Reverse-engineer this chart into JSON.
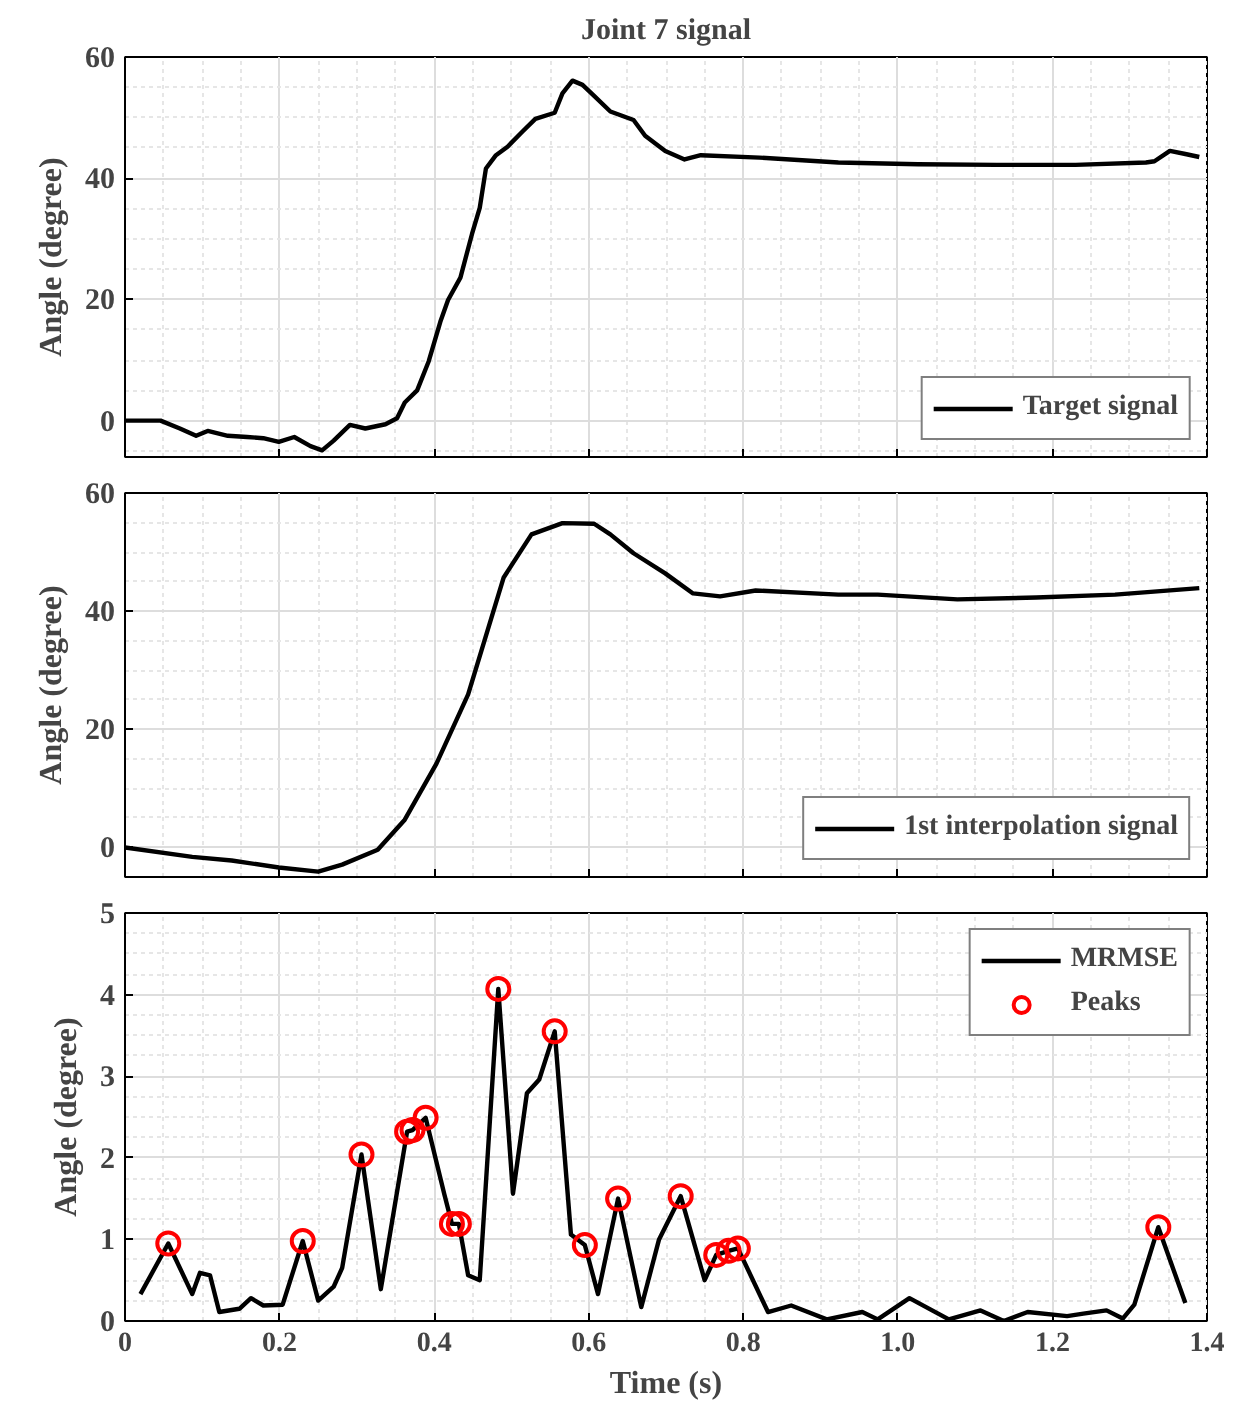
{
  "chart_data": [
    {
      "type": "line",
      "title": "Joint 7 signal",
      "ylabel": "Angle (degree)",
      "xlim": [
        0,
        1.4
      ],
      "xticks": [
        0,
        0.2,
        0.4,
        0.6,
        0.8,
        1.0,
        1.2,
        1.4
      ],
      "ylim": [
        -6,
        60
      ],
      "yticks": [
        0,
        20,
        40,
        60
      ],
      "tick_labels": "y",
      "grid": true,
      "legend": "bottom right",
      "line_style": "solid",
      "series": [
        {
          "name": "Target signal",
          "color": "#000000",
          "x": [
            0,
            0.046,
            0.071,
            0.092,
            0.107,
            0.133,
            0.158,
            0.179,
            0.199,
            0.219,
            0.24,
            0.255,
            0.27,
            0.291,
            0.311,
            0.337,
            0.352,
            0.362,
            0.378,
            0.393,
            0.408,
            0.418,
            0.434,
            0.449,
            0.459,
            0.467,
            0.48,
            0.495,
            0.515,
            0.531,
            0.556,
            0.566,
            0.579,
            0.592,
            0.607,
            0.628,
            0.658,
            0.673,
            0.699,
            0.724,
            0.745,
            0.821,
            0.923,
            1.026,
            1.128,
            1.23,
            1.321,
            1.332,
            1.352,
            1.372,
            1.39
          ],
          "values": [
            0,
            0,
            -1.3,
            -2.5,
            -1.7,
            -2.5,
            -2.7,
            -2.9,
            -3.5,
            -2.7,
            -4.2,
            -4.9,
            -3.3,
            -0.7,
            -1.3,
            -0.6,
            0.4,
            3,
            5,
            9.8,
            16.3,
            19.9,
            23.6,
            30.8,
            35.1,
            41.6,
            43.8,
            45.2,
            47.8,
            49.8,
            50.8,
            54,
            56.1,
            55.4,
            53.6,
            51,
            49.6,
            47,
            44.5,
            43.1,
            43.8,
            43.4,
            42.6,
            42.3,
            42.2,
            42.2,
            42.6,
            42.8,
            44.5,
            44,
            43.5
          ]
        }
      ]
    },
    {
      "type": "line",
      "ylabel": "Angle (degree)",
      "xlim": [
        0,
        1.4
      ],
      "xticks": [
        0,
        0.2,
        0.4,
        0.6,
        0.8,
        1.0,
        1.2,
        1.4
      ],
      "ylim": [
        -5,
        60
      ],
      "yticks": [
        0,
        20,
        40,
        60
      ],
      "tick_labels": "y",
      "grid": true,
      "legend": "bottom right",
      "line_style": "solid",
      "series": [
        {
          "name": "1st interpolation signal",
          "color": "#000000",
          "x": [
            0,
            0.087,
            0.138,
            0.199,
            0.25,
            0.281,
            0.327,
            0.362,
            0.403,
            0.444,
            0.49,
            0.526,
            0.566,
            0.607,
            0.628,
            0.658,
            0.699,
            0.735,
            0.77,
            0.816,
            0.923,
            0.974,
            1.077,
            1.179,
            1.281,
            1.39
          ],
          "values": [
            0,
            -1.6,
            -2.2,
            -3.4,
            -4.1,
            -2.9,
            -0.4,
            4.7,
            14.2,
            25.9,
            45.7,
            53,
            54.9,
            54.8,
            53,
            49.8,
            46.4,
            43,
            42.5,
            43.5,
            42.8,
            42.8,
            42,
            42.3,
            42.8,
            43.9
          ]
        }
      ]
    },
    {
      "type": "line",
      "xlabel": "Time (s)",
      "ylabel": "Angle (degree)",
      "xlim": [
        0,
        1.4
      ],
      "xticks": [
        0,
        0.2,
        0.4,
        0.6,
        0.8,
        {
          "value": 1.0,
          "label": "1.0"
        },
        1.2,
        1.4
      ],
      "ylim": [
        0,
        5
      ],
      "yticks": [
        0,
        1,
        2,
        3,
        4,
        5
      ],
      "grid": true,
      "legend": "top right",
      "series": [
        {
          "name": "MRMSE",
          "type": "line",
          "line_style": "solid",
          "color": "#000000",
          "x": [
            0.02,
            0.056,
            0.087,
            0.097,
            0.11,
            0.122,
            0.148,
            0.163,
            0.179,
            0.204,
            0.214,
            0.23,
            0.25,
            0.27,
            0.281,
            0.306,
            0.331,
            0.365,
            0.372,
            0.389,
            0.413,
            0.423,
            0.432,
            0.444,
            0.459,
            0.483,
            0.502,
            0.52,
            0.536,
            0.556,
            0.577,
            0.595,
            0.612,
            0.638,
            0.668,
            0.691,
            0.719,
            0.75,
            0.765,
            0.781,
            0.793,
            0.832,
            0.862,
            0.908,
            0.954,
            0.974,
            1.015,
            1.066,
            1.107,
            1.137,
            1.168,
            1.219,
            1.24,
            1.27,
            1.291,
            1.306,
            1.337,
            1.372
          ],
          "values": [
            0.33,
            0.95,
            0.33,
            0.59,
            0.56,
            0.11,
            0.15,
            0.28,
            0.19,
            0.2,
            0.5,
            0.98,
            0.25,
            0.42,
            0.65,
            2.04,
            0.39,
            2.32,
            2.34,
            2.49,
            1.56,
            1.19,
            1.19,
            0.56,
            0.5,
            4.07,
            1.56,
            2.79,
            2.96,
            3.55,
            1.06,
            0.93,
            0.33,
            1.5,
            0.17,
            1.0,
            1.53,
            0.5,
            0.81,
            0.86,
            0.89,
            0.11,
            0.19,
            0.02,
            0.11,
            0.02,
            0.28,
            0.02,
            0.13,
            0,
            0.11,
            0.06,
            0.09,
            0.13,
            0.03,
            0.2,
            1.15,
            0.22
          ]
        },
        {
          "name": "Peaks",
          "type": "scatter",
          "marker": "circle",
          "color": "#ff0000",
          "x": [
            0.056,
            0.23,
            0.306,
            0.365,
            0.372,
            0.389,
            0.423,
            0.432,
            0.483,
            0.556,
            0.595,
            0.638,
            0.719,
            0.765,
            0.781,
            0.793,
            1.337
          ],
          "values": [
            0.95,
            0.98,
            2.04,
            2.32,
            2.34,
            2.49,
            1.19,
            1.19,
            4.07,
            3.55,
            0.93,
            1.5,
            1.53,
            0.81,
            0.86,
            0.89,
            1.15
          ]
        }
      ]
    }
  ]
}
